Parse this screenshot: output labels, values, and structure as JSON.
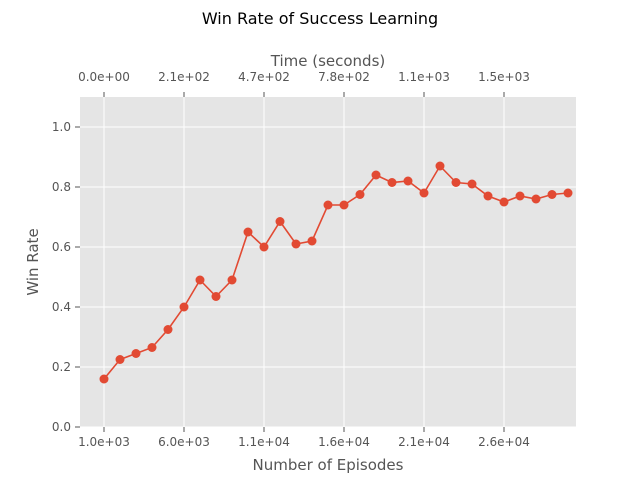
{
  "chart_data": {
    "type": "line",
    "title": "Win Rate of Success Learning",
    "xlabel": "Number of Episodes",
    "ylabel": "Win Rate",
    "top_xlabel": "Time (seconds)",
    "xlim": [
      -500,
      30500
    ],
    "ylim": [
      0.0,
      1.1
    ],
    "grid": true,
    "x_ticks": [
      {
        "value": 1000,
        "label": "1.0e+03"
      },
      {
        "value": 6000,
        "label": "6.0e+03"
      },
      {
        "value": 11000,
        "label": "1.1e+04"
      },
      {
        "value": 16000,
        "label": "1.6e+04"
      },
      {
        "value": 21000,
        "label": "2.1e+04"
      },
      {
        "value": 26000,
        "label": "2.6e+04"
      }
    ],
    "top_ticks": [
      {
        "value": 1000,
        "label": "0.0e+00"
      },
      {
        "value": 6000,
        "label": "2.1e+02"
      },
      {
        "value": 11000,
        "label": "4.7e+02"
      },
      {
        "value": 16000,
        "label": "7.8e+02"
      },
      {
        "value": 21000,
        "label": "1.1e+03"
      },
      {
        "value": 26000,
        "label": "1.5e+03"
      }
    ],
    "y_ticks": [
      {
        "value": 0.0,
        "label": "0.0"
      },
      {
        "value": 0.2,
        "label": "0.2"
      },
      {
        "value": 0.4,
        "label": "0.4"
      },
      {
        "value": 0.6,
        "label": "0.6"
      },
      {
        "value": 0.8,
        "label": "0.8"
      },
      {
        "value": 1.0,
        "label": "1.0"
      }
    ],
    "series": [
      {
        "name": "Win Rate",
        "color": "#e24a33",
        "x": [
          1000,
          2000,
          3000,
          4000,
          5000,
          6000,
          7000,
          8000,
          9000,
          10000,
          11000,
          12000,
          13000,
          14000,
          15000,
          16000,
          17000,
          18000,
          19000,
          20000,
          21000,
          22000,
          23000,
          24000,
          25000,
          26000,
          27000,
          28000,
          29000,
          30000
        ],
        "values": [
          0.16,
          0.225,
          0.245,
          0.265,
          0.325,
          0.4,
          0.49,
          0.435,
          0.49,
          0.65,
          0.6,
          0.685,
          0.61,
          0.62,
          0.74,
          0.74,
          0.775,
          0.84,
          0.815,
          0.82,
          0.78,
          0.87,
          0.815,
          0.81,
          0.77,
          0.75,
          0.77,
          0.76,
          0.775,
          0.78
        ]
      }
    ]
  }
}
